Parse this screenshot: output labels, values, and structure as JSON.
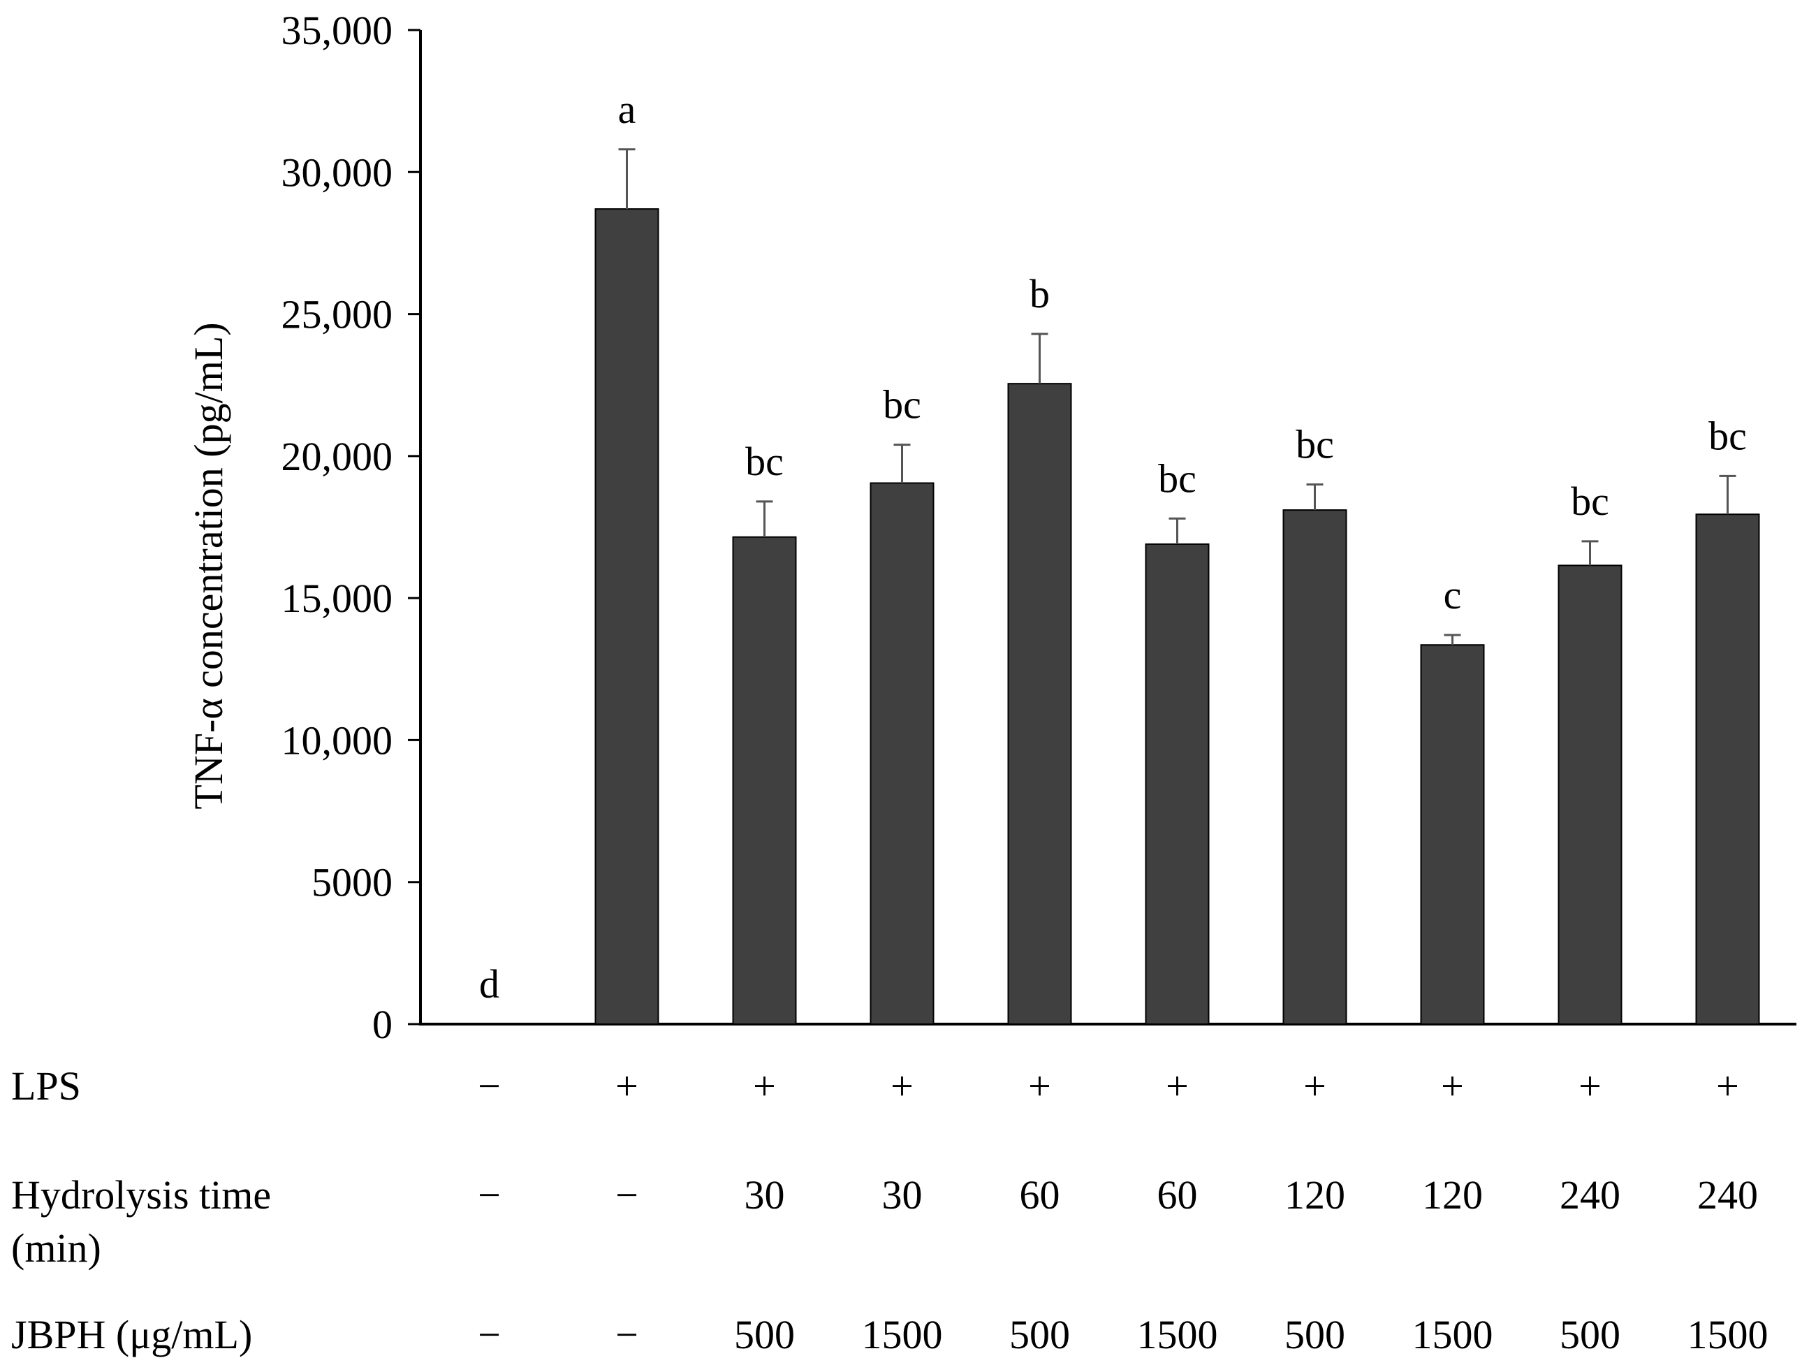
{
  "chart_data": {
    "type": "bar",
    "ylabel": "TNF-α concentration (pg/mL)",
    "ylim": [
      0,
      35000
    ],
    "yticks": [
      0,
      5000,
      10000,
      15000,
      20000,
      25000,
      30000,
      35000
    ],
    "ytick_labels": [
      "0",
      "5000",
      "10,000",
      "15,000",
      "20,000",
      "25,000",
      "30,000",
      "35,000"
    ],
    "grid": false,
    "bar_color": "#404040",
    "values": [
      0,
      28700,
      17150,
      19050,
      22550,
      16900,
      18100,
      13350,
      16150,
      17950
    ],
    "errors": [
      0,
      2100,
      1250,
      1350,
      1750,
      900,
      900,
      350,
      850,
      1350
    ],
    "significance": [
      "d",
      "a",
      "bc",
      "bc",
      "b",
      "bc",
      "bc",
      "c",
      "bc",
      "bc"
    ],
    "table_rows": [
      {
        "label": "LPS",
        "cells": [
          "−",
          "+",
          "+",
          "+",
          "+",
          "+",
          "+",
          "+",
          "+",
          "+"
        ]
      },
      {
        "label": [
          "Hydrolysis time",
          "(min)"
        ],
        "cells": [
          "−",
          "−",
          "30",
          "30",
          "60",
          "60",
          "120",
          "120",
          "240",
          "240"
        ]
      },
      {
        "label": "JBPH (μg/mL)",
        "cells": [
          "−",
          "−",
          "500",
          "1500",
          "500",
          "1500",
          "500",
          "1500",
          "500",
          "1500"
        ]
      }
    ]
  }
}
